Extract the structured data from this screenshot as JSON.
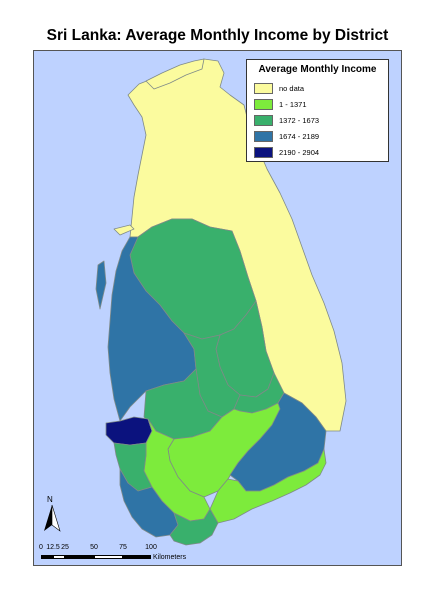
{
  "title": "Sri Lanka: Average Monthly Income by District",
  "colors": {
    "sea": "#bed2ff",
    "no_data": "#fbfb9e",
    "class1": "#7deb3c",
    "class2": "#39b06c",
    "class3": "#2f74a6",
    "class4": "#0b127e",
    "border": "#7f8a88"
  },
  "legend": {
    "title": "Average Monthly Income",
    "items": [
      {
        "label": "no data",
        "color": "#fbfb9e"
      },
      {
        "label": "1 - 1371",
        "color": "#7deb3c"
      },
      {
        "label": "1372 - 1673",
        "color": "#39b06c"
      },
      {
        "label": "1674 - 2189",
        "color": "#2f74a6"
      },
      {
        "label": "2190 - 2904",
        "color": "#0b127e"
      }
    ]
  },
  "north_arrow": {
    "label": "N",
    "icon": "north-arrow-icon"
  },
  "scale_bar": {
    "ticks": [
      "0",
      "12.5",
      "25",
      "50",
      "75",
      "100"
    ],
    "units": "Kilometers"
  }
}
